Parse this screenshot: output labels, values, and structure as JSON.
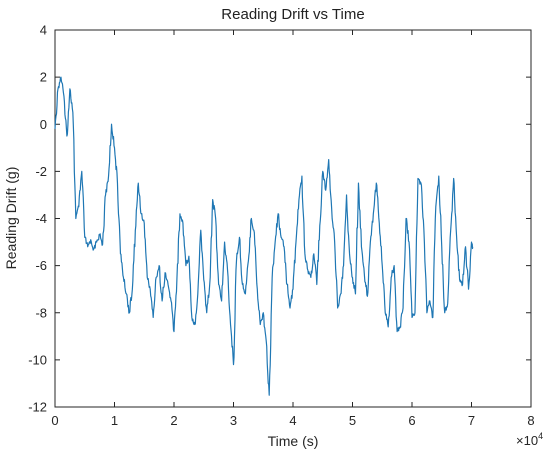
{
  "chart_data": {
    "type": "line",
    "title": "Reading Drift vs Time",
    "xlabel": "Time (s)",
    "ylabel": "Reading Drift (g)",
    "x_multiplier_label": "×10",
    "x_multiplier_exponent": "4",
    "xlim": [
      0,
      8
    ],
    "ylim": [
      -12,
      4
    ],
    "x_ticks": [
      "0",
      "1",
      "2",
      "3",
      "4",
      "5",
      "6",
      "7",
      "8"
    ],
    "y_ticks": [
      "4",
      "2",
      "0",
      "-2",
      "-4",
      "-6",
      "-8",
      "-10",
      "-12"
    ],
    "grid": false,
    "line_color": "#1f77b4",
    "series": [
      {
        "x": [
          0,
          0.05,
          0.1,
          0.15,
          0.2,
          0.25,
          0.3,
          0.35,
          0.4,
          0.45,
          0.5,
          0.55,
          0.6,
          0.65,
          0.7,
          0.75,
          0.8,
          0.85,
          0.9,
          0.95,
          1.0,
          1.05,
          1.1,
          1.15,
          1.2,
          1.25,
          1.3,
          1.35,
          1.4,
          1.45,
          1.5,
          1.55,
          1.6,
          1.65,
          1.7,
          1.75,
          1.8,
          1.85,
          1.9,
          1.95,
          2.0,
          2.05,
          2.1,
          2.15,
          2.2,
          2.25,
          2.3,
          2.35,
          2.4,
          2.45,
          2.5,
          2.55,
          2.6,
          2.65,
          2.7,
          2.75,
          2.8,
          2.85,
          2.9,
          2.95,
          3.0,
          3.05,
          3.1,
          3.15,
          3.2,
          3.25,
          3.3,
          3.35,
          3.4,
          3.45,
          3.5,
          3.55,
          3.6,
          3.65,
          3.7,
          3.75,
          3.8,
          3.85,
          3.9,
          3.95,
          4.0,
          4.05,
          4.1,
          4.15,
          4.2,
          4.25,
          4.3,
          4.35,
          4.4,
          4.45,
          4.5,
          4.55,
          4.6,
          4.65,
          4.7,
          4.75,
          4.8,
          4.85,
          4.9,
          4.95,
          5.0,
          5.05,
          5.1,
          5.15,
          5.2,
          5.25,
          5.3,
          5.35,
          5.4,
          5.45,
          5.5,
          5.55,
          5.6,
          5.65,
          5.7,
          5.75,
          5.8,
          5.85,
          5.9,
          5.95,
          6.0,
          6.05,
          6.1,
          6.15,
          6.2,
          6.25,
          6.3,
          6.35,
          6.4,
          6.45,
          6.5,
          6.55,
          6.6,
          6.65,
          6.7,
          6.75,
          6.8,
          6.85,
          6.9,
          6.95,
          7.0,
          7.02
        ],
        "y": [
          -0.2,
          1.5,
          2.0,
          1.2,
          -0.5,
          1.5,
          0.5,
          -4.0,
          -3.5,
          -2.0,
          -4.8,
          -5.2,
          -4.9,
          -5.3,
          -5.0,
          -4.7,
          -5.1,
          -3.0,
          -2.2,
          0.0,
          -1.0,
          -2.5,
          -5.5,
          -6.5,
          -7.2,
          -8.0,
          -7.0,
          -4.5,
          -2.5,
          -3.8,
          -4.2,
          -6.5,
          -7.0,
          -8.2,
          -6.5,
          -6.0,
          -7.5,
          -6.3,
          -6.8,
          -7.5,
          -8.8,
          -6.5,
          -3.8,
          -4.2,
          -6.0,
          -5.6,
          -8.2,
          -8.5,
          -7.2,
          -4.5,
          -6.6,
          -8.0,
          -6.8,
          -3.2,
          -4.0,
          -6.8,
          -7.5,
          -5.0,
          -6.2,
          -8.5,
          -10.2,
          -5.8,
          -4.8,
          -6.8,
          -7.2,
          -5.8,
          -4.0,
          -4.6,
          -7.0,
          -8.5,
          -8.0,
          -9.2,
          -11.5,
          -6.5,
          -5.0,
          -3.8,
          -4.8,
          -5.2,
          -6.8,
          -7.8,
          -7.0,
          -5.0,
          -3.2,
          -2.2,
          -5.5,
          -6.2,
          -6.5,
          -5.5,
          -6.8,
          -4.3,
          -2.0,
          -2.8,
          -1.5,
          -3.6,
          -5.0,
          -7.8,
          -7.2,
          -6.0,
          -3.0,
          -5.5,
          -6.5,
          -7.2,
          -2.5,
          -5.2,
          -6.4,
          -7.3,
          -5.0,
          -3.8,
          -2.5,
          -4.2,
          -6.0,
          -8.0,
          -8.6,
          -6.5,
          -6.0,
          -8.8,
          -8.6,
          -7.8,
          -4.0,
          -5.0,
          -8.2,
          -8.0,
          -2.3,
          -2.5,
          -4.5,
          -8.0,
          -7.5,
          -8.2,
          -3.5,
          -2.2,
          -5.2,
          -8.0,
          -7.6,
          -4.5,
          -2.3,
          -4.8,
          -6.6,
          -6.8,
          -5.2,
          -7.0,
          -5.0,
          -5.2
        ]
      }
    ]
  }
}
